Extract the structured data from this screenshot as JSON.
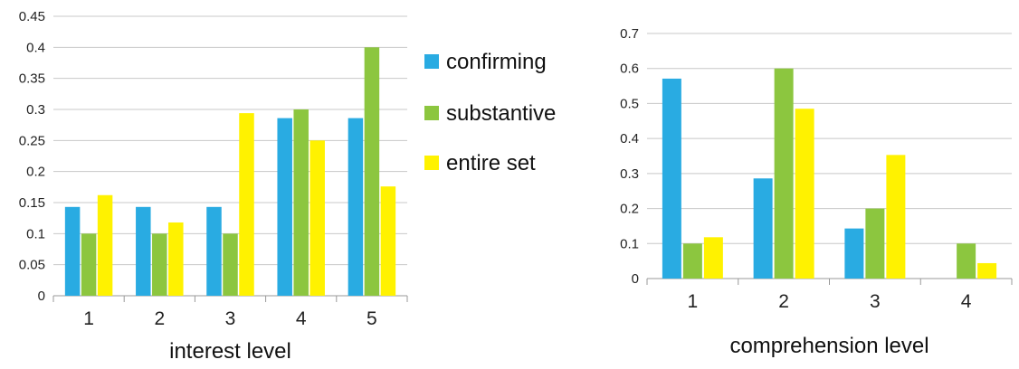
{
  "legend": {
    "entries": [
      {
        "label": "confirming",
        "color": "#29ABE2"
      },
      {
        "label": "substantive",
        "color": "#8CC63F"
      },
      {
        "label": "entire set",
        "color": "#FFF200"
      }
    ],
    "placement": "right of left chart"
  },
  "chart_data": [
    {
      "type": "bar",
      "categories": [
        "1",
        "2",
        "3",
        "4",
        "5"
      ],
      "series": [
        {
          "name": "confirming",
          "values": [
            0.143,
            0.143,
            0.143,
            0.286,
            0.286
          ]
        },
        {
          "name": "substantive",
          "values": [
            0.1,
            0.1,
            0.1,
            0.3,
            0.4
          ]
        },
        {
          "name": "entire set",
          "values": [
            0.162,
            0.118,
            0.294,
            0.25,
            0.176
          ]
        }
      ],
      "xlabel": "interest level",
      "ylabel": "",
      "ylim": [
        0,
        0.45
      ],
      "yticks": [
        "0",
        "0.05",
        "0.1",
        "0.15",
        "0.2",
        "0.25",
        "0.3",
        "0.35",
        "0.4",
        "0.45"
      ],
      "grid": true
    },
    {
      "type": "bar",
      "categories": [
        "1",
        "2",
        "3",
        "4"
      ],
      "series": [
        {
          "name": "confirming",
          "values": [
            0.571,
            0.286,
            0.143,
            0
          ]
        },
        {
          "name": "substantive",
          "values": [
            0.1,
            0.6,
            0.2,
            0.1
          ]
        },
        {
          "name": "entire set",
          "values": [
            0.118,
            0.485,
            0.353,
            0.044
          ]
        }
      ],
      "xlabel": "comprehension level",
      "ylabel": "",
      "ylim": [
        0,
        0.7
      ],
      "yticks": [
        "0",
        "0.1",
        "0.2",
        "0.3",
        "0.4",
        "0.5",
        "0.6",
        "0.7"
      ],
      "grid": true
    }
  ]
}
